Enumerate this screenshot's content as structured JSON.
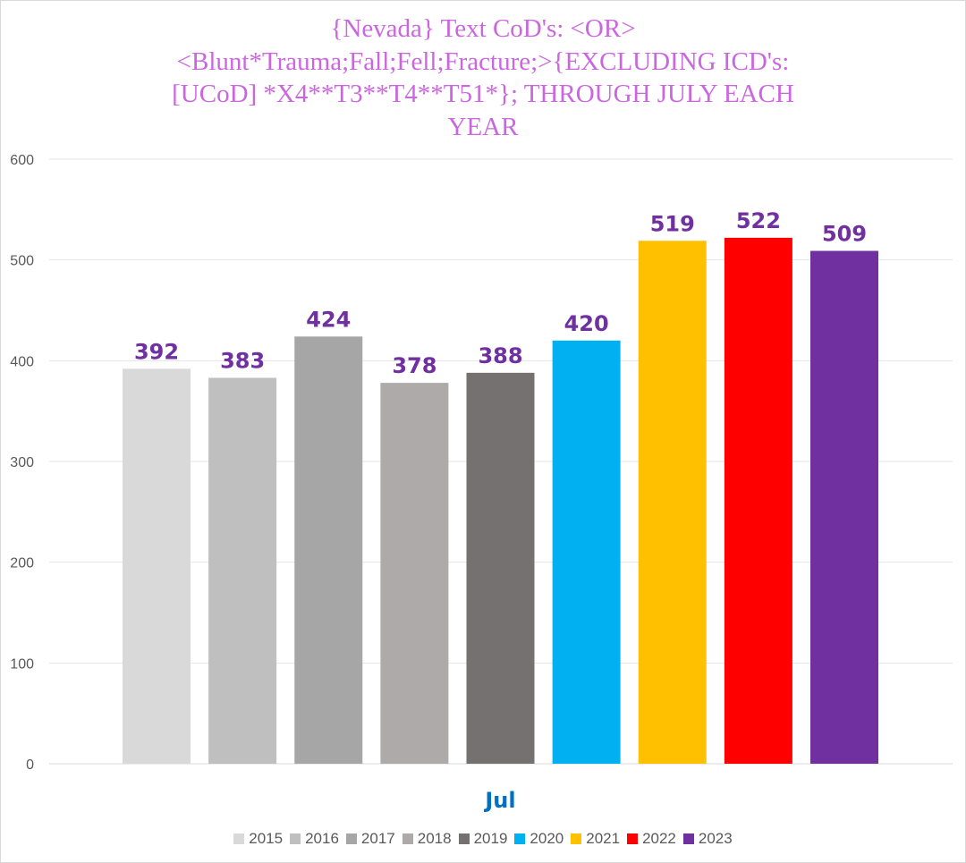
{
  "chart_data": {
    "type": "bar",
    "title_lines": [
      "{Nevada}  Text CoD's: <OR>",
      "<Blunt*Trauma;Fall;Fell;Fracture;>{EXCLUDING ICD's:",
      "[UCoD] *X4**T3**T4**T51*};  THROUGH JULY EACH",
      "YEAR"
    ],
    "categories": [
      "Jul"
    ],
    "series": [
      {
        "name": "2015",
        "values": [
          392
        ],
        "color": "#d9d9d9"
      },
      {
        "name": "2016",
        "values": [
          383
        ],
        "color": "#bfbfbf"
      },
      {
        "name": "2017",
        "values": [
          424
        ],
        "color": "#a6a6a6"
      },
      {
        "name": "2018",
        "values": [
          378
        ],
        "color": "#aeaaaa"
      },
      {
        "name": "2019",
        "values": [
          388
        ],
        "color": "#767171"
      },
      {
        "name": "2020",
        "values": [
          420
        ],
        "color": "#00b0f0"
      },
      {
        "name": "2021",
        "values": [
          519
        ],
        "color": "#ffc000"
      },
      {
        "name": "2022",
        "values": [
          522
        ],
        "color": "#ff0000"
      },
      {
        "name": "2023",
        "values": [
          509
        ],
        "color": "#7030a0"
      }
    ],
    "ylim": [
      0,
      600
    ],
    "yticks": [
      0,
      100,
      200,
      300,
      400,
      500,
      600
    ],
    "grid": true,
    "legend_position": "bottom",
    "data_label_color": "#7030a0",
    "category_label_color": "#0070c0"
  }
}
